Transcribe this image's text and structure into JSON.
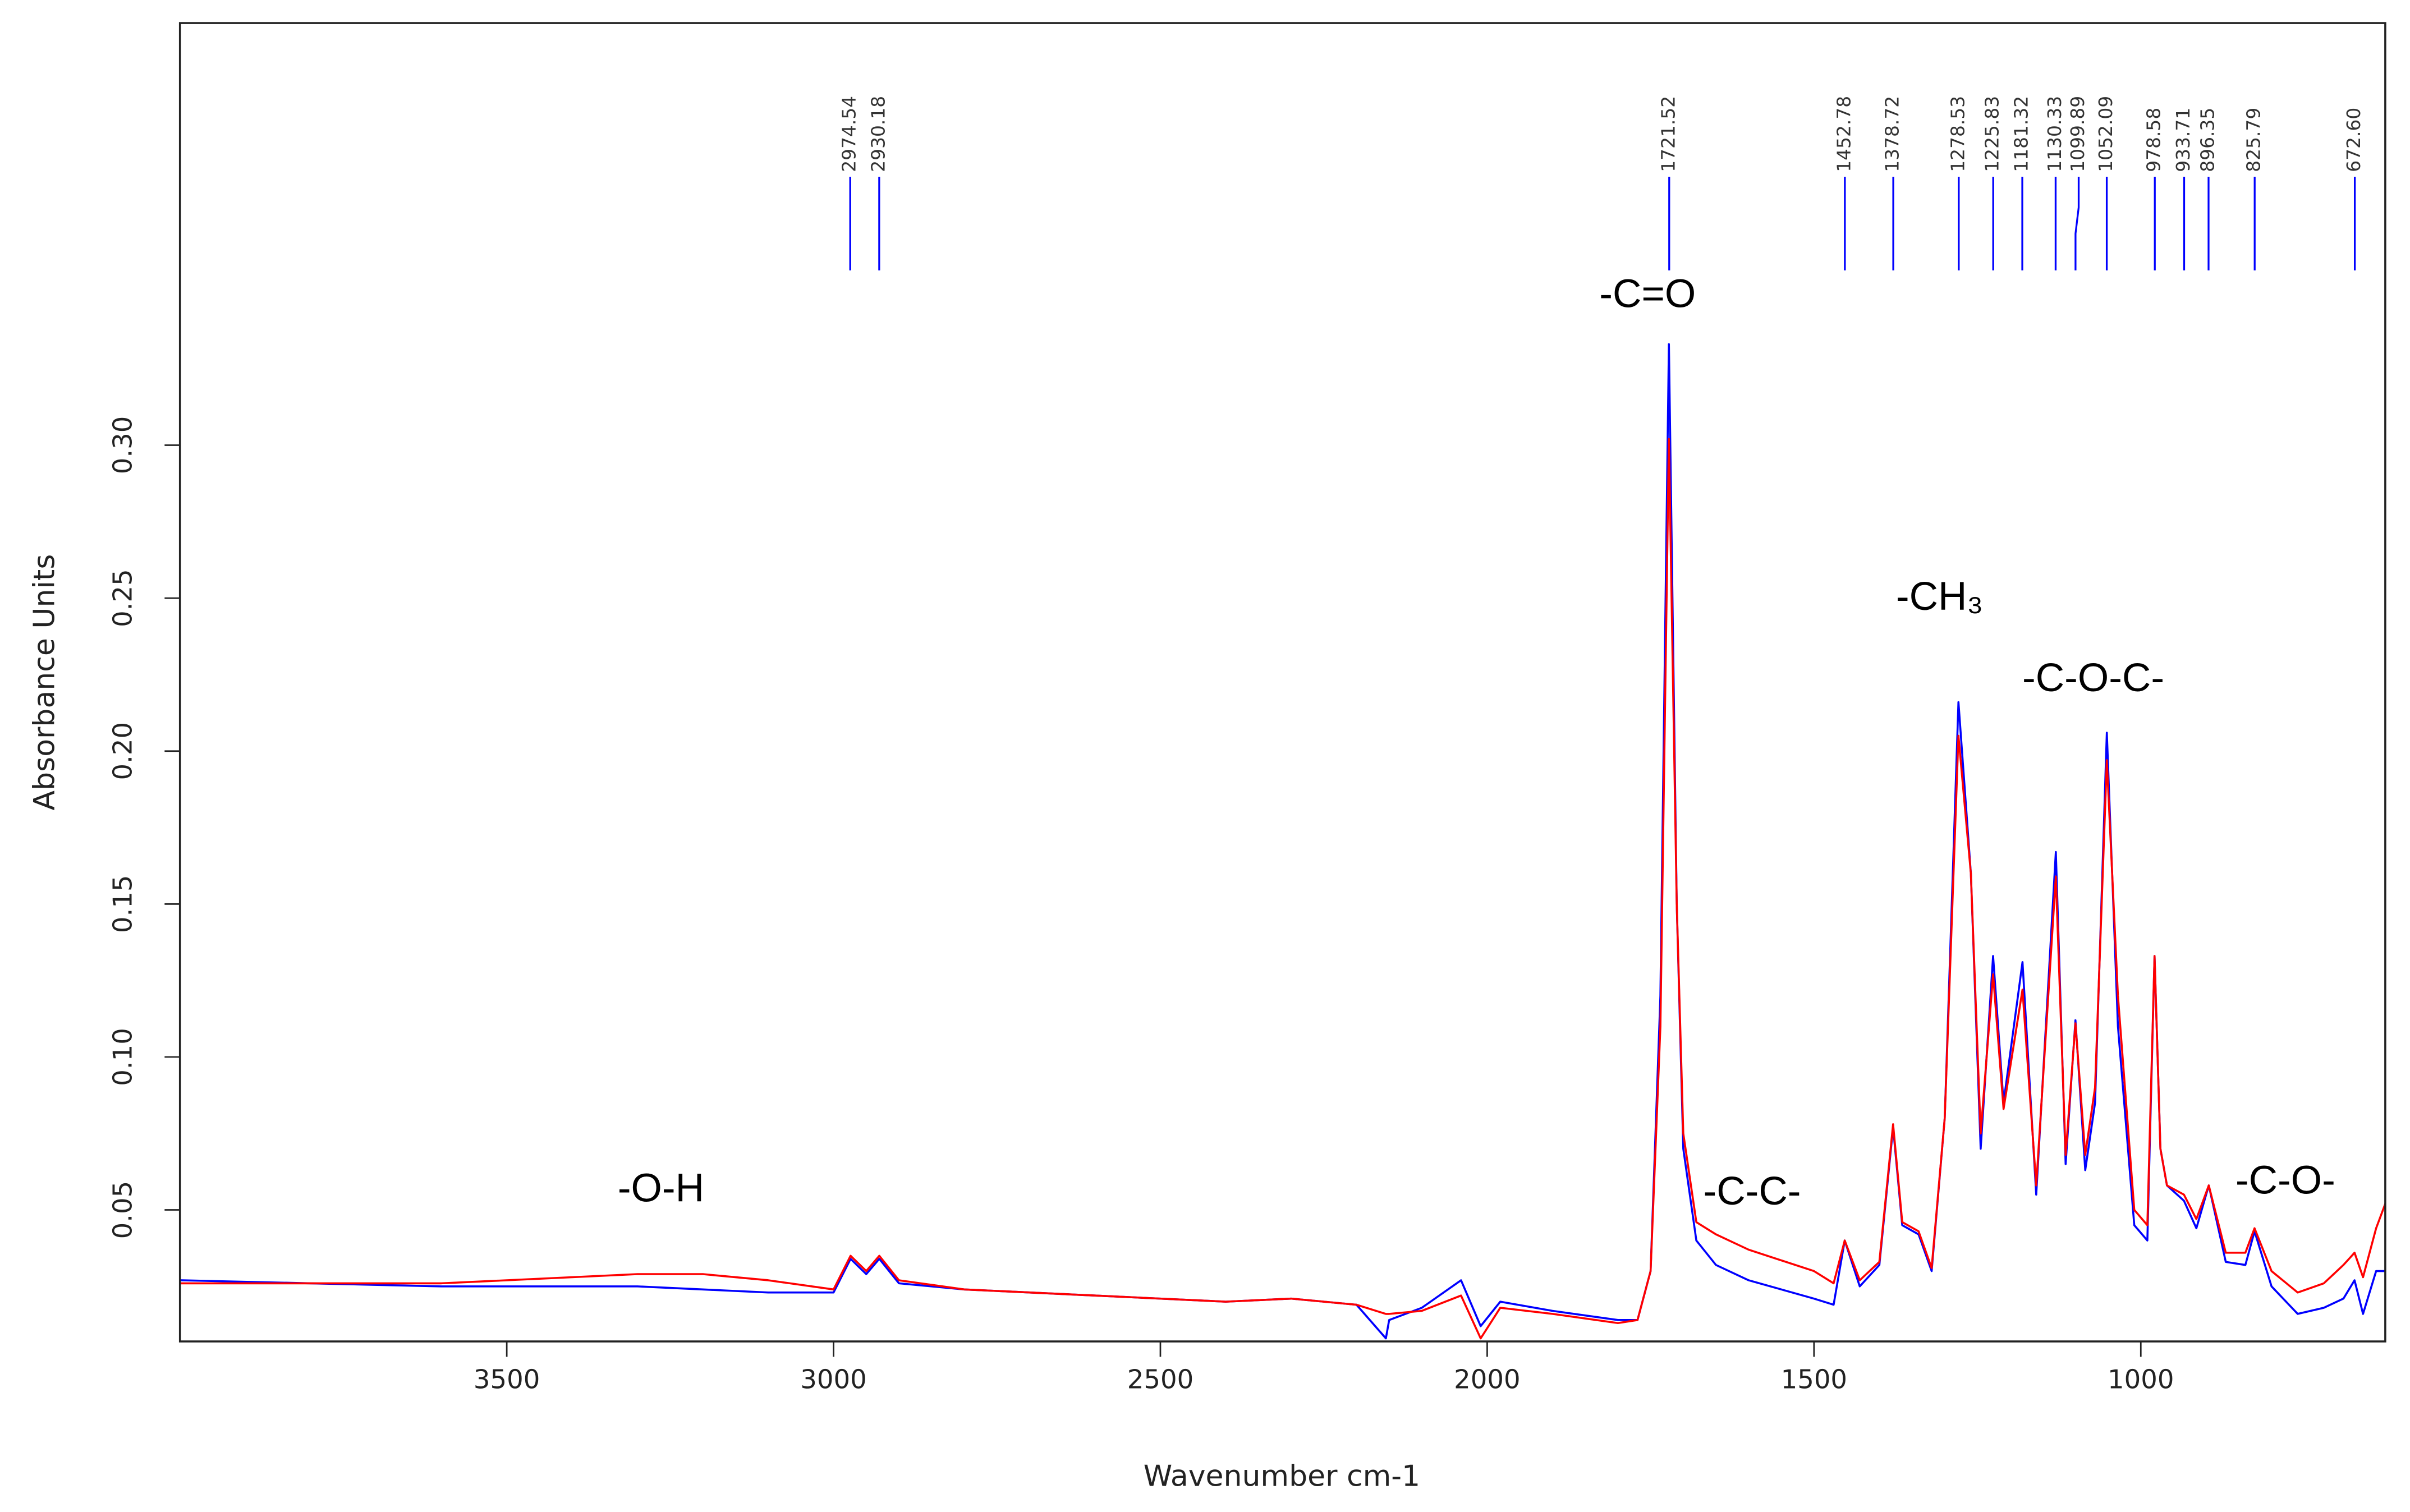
{
  "chart_data": {
    "type": "line",
    "x_label": "Wavenumber cm-1",
    "y_label": "Absorbance Units",
    "xlim": [
      4000,
      626
    ],
    "ylim": [
      0.007,
      0.438
    ],
    "xticks": [
      3500,
      3000,
      2500,
      2000,
      1500,
      1000
    ],
    "yticks": [
      0.05,
      {
        "value": 0.1,
        "label": "0.10"
      },
      0.15,
      {
        "value": 0.2,
        "label": "0.20"
      },
      0.25,
      {
        "value": 0.3,
        "label": "0.30"
      }
    ],
    "x": [
      4000,
      3800,
      3600,
      3400,
      3300,
      3200,
      3100,
      3000,
      2974,
      2950,
      2930,
      2900,
      2800,
      2600,
      2400,
      2300,
      2200,
      2155,
      2150,
      2100,
      2040,
      2010,
      1980,
      1900,
      1800,
      1770,
      1750,
      1735,
      1722,
      1710,
      1700,
      1680,
      1650,
      1600,
      1500,
      1470,
      1453,
      1430,
      1400,
      1379,
      1365,
      1340,
      1320,
      1300,
      1279,
      1260,
      1245,
      1226,
      1210,
      1181,
      1160,
      1130,
      1115,
      1100,
      1085,
      1070,
      1052,
      1035,
      1010,
      990,
      979,
      970,
      960,
      934,
      915,
      896,
      870,
      840,
      826,
      800,
      760,
      720,
      690,
      673,
      660,
      640,
      626
    ],
    "series": [
      {
        "color": "#0000ff",
        "values": [
          0.027,
          0.026,
          0.025,
          0.025,
          0.025,
          0.024,
          0.023,
          0.023,
          0.034,
          0.029,
          0.034,
          0.026,
          0.024,
          0.022,
          0.02,
          0.021,
          0.019,
          0.008,
          0.014,
          0.018,
          0.027,
          0.012,
          0.02,
          0.017,
          0.014,
          0.014,
          0.03,
          0.12,
          0.333,
          0.15,
          0.07,
          0.04,
          0.032,
          0.027,
          0.021,
          0.019,
          0.04,
          0.025,
          0.032,
          0.077,
          0.045,
          0.042,
          0.03,
          0.08,
          0.216,
          0.16,
          0.07,
          0.133,
          0.085,
          0.131,
          0.055,
          0.167,
          0.065,
          0.112,
          0.063,
          0.085,
          0.206,
          0.11,
          0.045,
          0.04,
          0.133,
          0.07,
          0.058,
          0.053,
          0.044,
          0.058,
          0.033,
          0.032,
          0.043,
          0.025,
          0.016,
          0.018,
          0.021,
          0.027,
          0.016,
          0.03,
          0.03
        ]
      },
      {
        "color": "#ff0000",
        "values": [
          0.026,
          0.026,
          0.026,
          0.028,
          0.029,
          0.029,
          0.027,
          0.024,
          0.035,
          0.03,
          0.035,
          0.027,
          0.024,
          0.022,
          0.02,
          0.021,
          0.019,
          0.016,
          0.016,
          0.017,
          0.022,
          0.008,
          0.018,
          0.016,
          0.013,
          0.014,
          0.03,
          0.11,
          0.302,
          0.15,
          0.075,
          0.046,
          0.042,
          0.037,
          0.03,
          0.026,
          0.04,
          0.027,
          0.033,
          0.078,
          0.046,
          0.043,
          0.031,
          0.08,
          0.205,
          0.16,
          0.075,
          0.127,
          0.083,
          0.122,
          0.058,
          0.159,
          0.068,
          0.111,
          0.068,
          0.09,
          0.197,
          0.12,
          0.05,
          0.045,
          0.133,
          0.07,
          0.058,
          0.055,
          0.047,
          0.058,
          0.036,
          0.036,
          0.044,
          0.03,
          0.023,
          0.026,
          0.032,
          0.036,
          0.028,
          0.044,
          0.052
        ]
      }
    ],
    "peaks": [
      {
        "value": 2974.54,
        "label": "2974.54"
      },
      {
        "value": 2930.18,
        "label": "2930.18"
      },
      {
        "value": 1721.52,
        "label": "1721.52"
      },
      {
        "value": 1452.78,
        "label": "1452.78"
      },
      {
        "value": 1378.72,
        "label": "1378.72"
      },
      {
        "value": 1278.53,
        "label": "1278.53"
      },
      {
        "value": 1225.83,
        "label": "1225.83"
      },
      {
        "value": 1181.32,
        "label": "1181.32"
      },
      {
        "value": 1130.33,
        "label": "1130.33"
      },
      {
        "value": 1099.89,
        "label": "1099.89"
      },
      {
        "value": 1052.09,
        "label": "1052.09"
      },
      {
        "value": 978.58,
        "label": "978.58"
      },
      {
        "value": 933.71,
        "label": "933.71"
      },
      {
        "value": 896.35,
        "label": "896.35"
      },
      {
        "value": 825.79,
        "label": "825.79"
      },
      {
        "value": 672.6,
        "label": "672.60"
      }
    ],
    "annotations": [
      "-O-H",
      "-C=O",
      "-C-C-",
      "-CH₃",
      "-C-O-C-",
      "-C-O-"
    ]
  }
}
